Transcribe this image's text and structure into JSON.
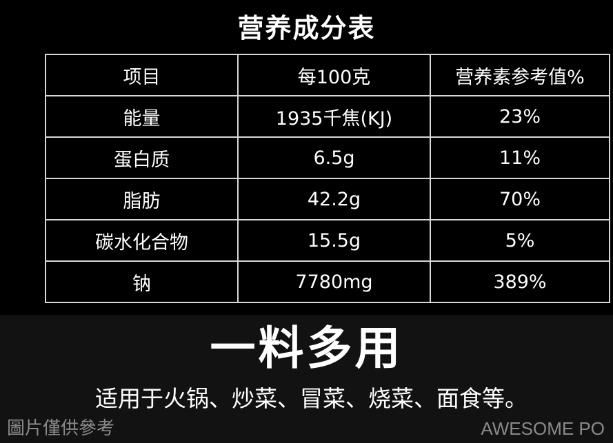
{
  "title": "营养成分表",
  "table": {
    "headers": [
      "项目",
      "每100克",
      "营养素参考值%"
    ],
    "rows": [
      [
        "能量",
        "1935千焦(KJ)",
        "23%"
      ],
      [
        "蛋白质",
        "6.5g",
        "11%"
      ],
      [
        "脂肪",
        "42.2g",
        "70%"
      ],
      [
        "碳水化合物",
        "15.5g",
        "5%"
      ],
      [
        "钠",
        "7780mg",
        "389%"
      ]
    ]
  },
  "slogan": "一料多用",
  "uses": "适用于火锅、炒菜、冒菜、烧菜、面食等。",
  "watermark": {
    "left": "圖片僅供參考",
    "right": "AWESOME PO"
  }
}
